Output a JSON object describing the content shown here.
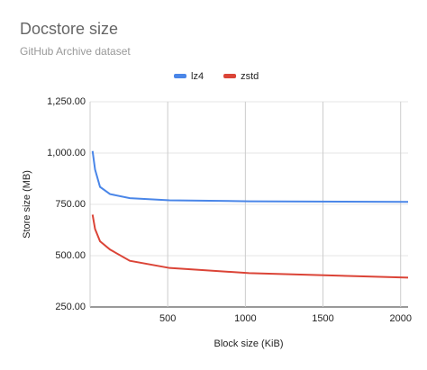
{
  "chart_data": {
    "type": "line",
    "title": "Docstore size",
    "subtitle": "GitHub Archive dataset",
    "x_label": "Block size (KiB)",
    "y_label": "Store size (MB)",
    "x": [
      16,
      32,
      64,
      128,
      256,
      512,
      1024,
      2048
    ],
    "series": [
      {
        "name": "lz4",
        "color": "#4a86e8",
        "values": [
          1010,
          920,
          835,
          800,
          780,
          770,
          765,
          762
        ]
      },
      {
        "name": "zstd",
        "color": "#db4437",
        "values": [
          700,
          630,
          570,
          530,
          475,
          440,
          415,
          393
        ]
      }
    ],
    "xlim": [
      0,
      2048
    ],
    "xticks": [
      500,
      1000,
      1500,
      2000
    ],
    "ylim": [
      250,
      1250
    ],
    "yticks": [
      {
        "value": 250,
        "label": "250.00"
      },
      {
        "value": 500,
        "label": "500.00"
      },
      {
        "value": 750,
        "label": "750.00"
      },
      {
        "value": 1000,
        "label": "1,000.00"
      },
      {
        "value": 1250,
        "label": "1,250.00"
      }
    ],
    "grid": true,
    "legend": "top"
  }
}
